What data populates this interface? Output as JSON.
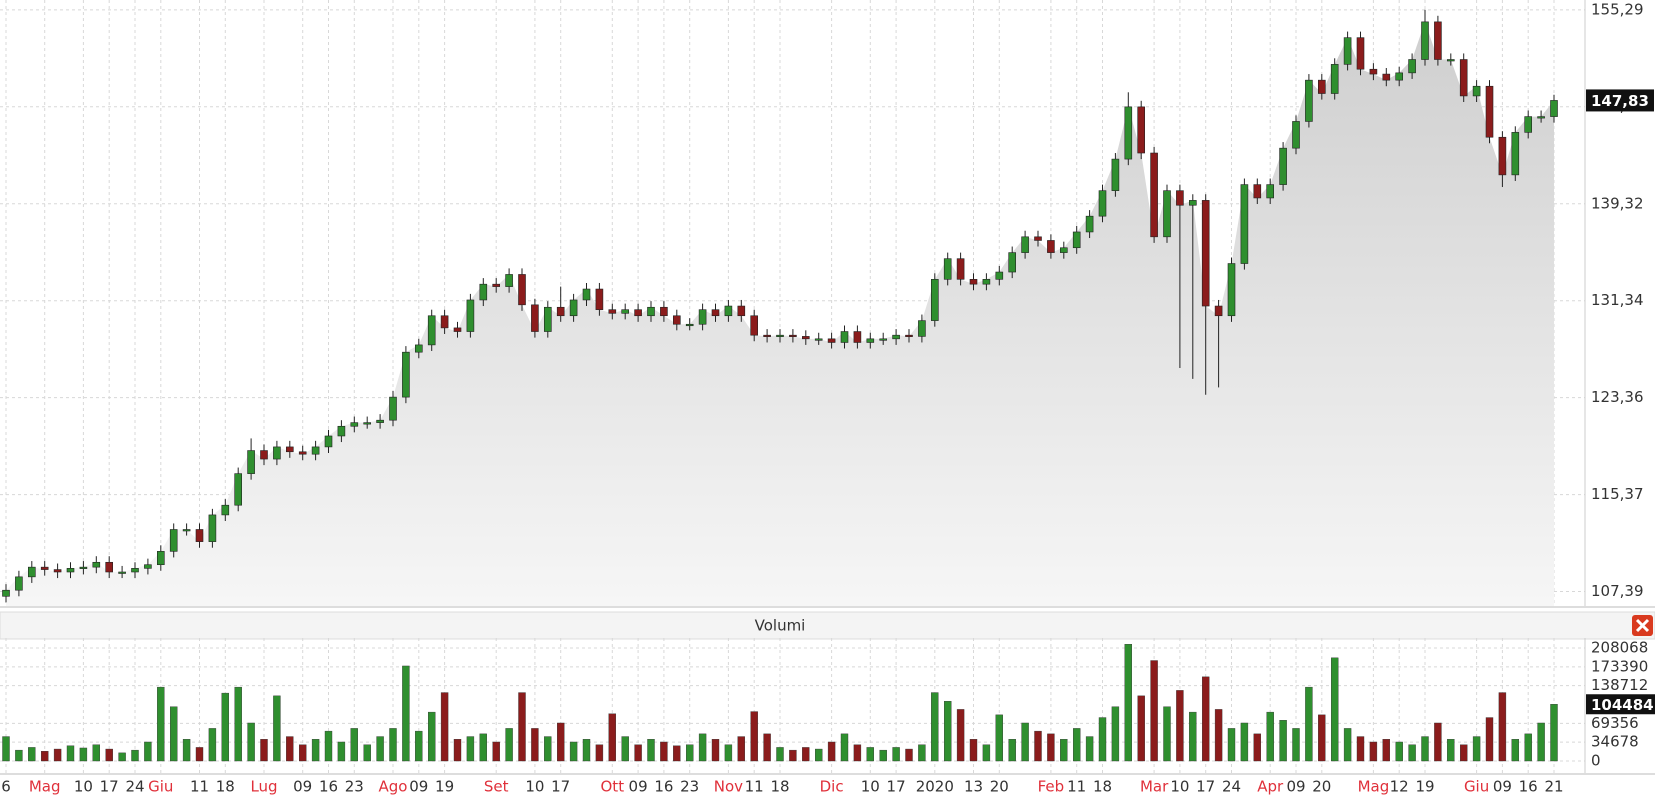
{
  "chart_data": [
    {
      "type": "candlestick",
      "categories": [
        "6",
        null,
        null,
        "Mag",
        null,
        null,
        "10",
        null,
        "17",
        null,
        "24",
        null,
        "Giu",
        null,
        null,
        "11",
        null,
        "18",
        null,
        null,
        "Lug",
        null,
        null,
        "09",
        null,
        "16",
        null,
        "23",
        null,
        null,
        "Ago",
        null,
        "09",
        null,
        "19",
        null,
        null,
        null,
        "Set",
        null,
        null,
        "10",
        null,
        "17",
        null,
        null,
        null,
        "Ott",
        null,
        "09",
        null,
        "16",
        null,
        "23",
        null,
        null,
        "Nov",
        null,
        "11",
        null,
        "18",
        null,
        null,
        null,
        "Dic",
        null,
        null,
        "10",
        null,
        "17",
        null,
        null,
        "2020",
        null,
        null,
        "13",
        null,
        "20",
        null,
        null,
        null,
        "Feb",
        null,
        "11",
        null,
        "18",
        null,
        null,
        null,
        "Mar",
        null,
        "10",
        null,
        "17",
        null,
        "24",
        null,
        null,
        "Apr",
        null,
        "09",
        null,
        "20",
        null,
        null,
        null,
        "Mag",
        null,
        "12",
        null,
        "19",
        null,
        null,
        null,
        "Giu",
        null,
        "09",
        null,
        "16",
        null,
        "21"
      ],
      "open": [
        107.0,
        107.5,
        108.6,
        109.4,
        109.2,
        109.0,
        109.3,
        109.4,
        109.8,
        109.0,
        109.0,
        109.3,
        109.6,
        110.7,
        112.5,
        112.5,
        111.5,
        113.7,
        114.5,
        117.1,
        119.0,
        118.3,
        119.3,
        118.9,
        118.7,
        119.3,
        120.2,
        121.0,
        121.3,
        121.3,
        121.5,
        123.4,
        127.1,
        127.7,
        130.1,
        129.1,
        128.8,
        131.4,
        132.7,
        132.5,
        133.5,
        131.0,
        128.8,
        130.8,
        130.1,
        131.4,
        132.3,
        130.6,
        130.3,
        130.6,
        130.1,
        130.8,
        130.1,
        129.4,
        129.4,
        130.6,
        130.1,
        130.9,
        130.1,
        128.5,
        128.4,
        128.5,
        128.4,
        128.2,
        128.2,
        127.9,
        128.8,
        127.9,
        128.2,
        128.2,
        128.5,
        128.4,
        129.7,
        133.1,
        134.8,
        133.1,
        132.7,
        133.1,
        133.7,
        135.3,
        136.6,
        136.3,
        135.3,
        135.7,
        137.0,
        138.3,
        140.4,
        143.0,
        147.3,
        143.5,
        136.6,
        140.4,
        139.2,
        139.6,
        130.9,
        130.1,
        134.4,
        140.9,
        139.8,
        140.9,
        143.9,
        146.1,
        149.5,
        148.4,
        150.8,
        153.0,
        150.4,
        150.0,
        149.5,
        150.1,
        151.2,
        154.3,
        151.2,
        151.2,
        148.2,
        149.0,
        144.8,
        141.7,
        145.2,
        146.5,
        146.5
      ],
      "high": [
        108.0,
        109.1,
        109.9,
        109.9,
        109.7,
        109.8,
        109.9,
        110.3,
        110.3,
        109.5,
        109.8,
        110.1,
        111.2,
        113.0,
        113.0,
        113.0,
        114.2,
        115.0,
        117.6,
        120.0,
        119.5,
        119.8,
        119.8,
        119.4,
        119.8,
        120.7,
        121.5,
        121.8,
        121.8,
        122.0,
        123.9,
        127.6,
        128.2,
        130.6,
        130.6,
        129.6,
        131.9,
        133.2,
        133.2,
        134.0,
        134.0,
        131.5,
        131.3,
        132.5,
        131.9,
        132.8,
        132.8,
        131.1,
        131.1,
        131.1,
        131.3,
        131.3,
        130.6,
        129.9,
        131.1,
        131.1,
        131.4,
        131.4,
        130.6,
        129.0,
        129.0,
        129.0,
        128.9,
        128.7,
        128.7,
        129.3,
        129.3,
        128.7,
        128.7,
        129.0,
        129.0,
        130.2,
        133.6,
        135.3,
        135.3,
        133.6,
        133.6,
        134.2,
        135.8,
        137.1,
        137.1,
        136.8,
        136.2,
        137.5,
        138.8,
        140.9,
        143.5,
        148.5,
        147.8,
        144.0,
        140.9,
        140.9,
        140.1,
        140.1,
        131.4,
        134.9,
        141.4,
        141.4,
        141.4,
        144.4,
        146.6,
        150.0,
        150.0,
        151.3,
        153.5,
        153.5,
        150.9,
        150.5,
        150.6,
        151.7,
        155.3,
        154.8,
        151.7,
        151.7,
        149.5,
        149.5,
        145.3,
        145.7,
        147.0,
        147.0,
        148.3
      ],
      "low": [
        106.5,
        107.0,
        108.1,
        108.7,
        108.5,
        108.5,
        108.8,
        108.9,
        108.5,
        108.5,
        108.5,
        108.8,
        109.1,
        110.2,
        112.0,
        111.0,
        111.0,
        113.2,
        114.0,
        116.6,
        117.8,
        117.8,
        118.4,
        118.2,
        118.2,
        118.8,
        119.7,
        120.5,
        120.8,
        120.8,
        121.0,
        122.9,
        126.6,
        127.2,
        128.6,
        128.3,
        128.3,
        130.9,
        132.0,
        132.0,
        130.5,
        128.3,
        128.3,
        129.6,
        129.6,
        130.9,
        130.1,
        129.8,
        129.8,
        129.6,
        129.6,
        129.6,
        128.9,
        128.9,
        128.9,
        129.6,
        129.6,
        129.6,
        128.0,
        127.9,
        127.9,
        127.9,
        127.7,
        127.7,
        127.4,
        127.4,
        127.4,
        127.4,
        127.7,
        127.7,
        127.9,
        127.9,
        129.2,
        132.6,
        132.6,
        132.2,
        132.2,
        132.6,
        133.2,
        134.8,
        135.8,
        134.8,
        134.8,
        135.2,
        136.5,
        137.8,
        139.9,
        142.5,
        143.0,
        136.1,
        136.1,
        125.8,
        124.9,
        123.6,
        124.2,
        129.6,
        133.9,
        139.3,
        139.3,
        140.4,
        143.4,
        145.6,
        147.9,
        147.9,
        150.3,
        149.9,
        149.5,
        149.0,
        149.0,
        149.6,
        150.7,
        150.7,
        150.7,
        147.7,
        147.7,
        144.3,
        140.7,
        141.2,
        144.7,
        146.0,
        146.0
      ],
      "close": [
        107.5,
        108.6,
        109.4,
        109.2,
        109.0,
        109.3,
        109.4,
        109.8,
        109.0,
        109.0,
        109.3,
        109.6,
        110.7,
        112.5,
        112.5,
        111.5,
        113.7,
        114.5,
        117.1,
        119.0,
        118.3,
        119.3,
        118.9,
        118.7,
        119.3,
        120.2,
        121.0,
        121.3,
        121.3,
        121.5,
        123.4,
        127.1,
        127.7,
        130.1,
        129.1,
        128.8,
        131.4,
        132.7,
        132.5,
        133.5,
        131.0,
        128.8,
        130.8,
        130.1,
        131.4,
        132.3,
        130.6,
        130.3,
        130.6,
        130.1,
        130.8,
        130.1,
        129.4,
        129.4,
        130.6,
        130.1,
        130.9,
        130.1,
        128.5,
        128.4,
        128.5,
        128.4,
        128.2,
        128.2,
        127.9,
        128.8,
        127.9,
        128.2,
        128.2,
        128.5,
        128.4,
        129.7,
        133.1,
        134.8,
        133.1,
        132.7,
        133.1,
        133.7,
        135.3,
        136.6,
        136.3,
        135.3,
        135.7,
        137.0,
        138.3,
        140.4,
        143.0,
        147.3,
        143.5,
        136.6,
        140.4,
        139.2,
        139.6,
        130.9,
        130.1,
        134.4,
        140.9,
        139.8,
        140.9,
        143.9,
        146.1,
        149.5,
        148.4,
        150.8,
        153.0,
        150.4,
        150.0,
        149.5,
        150.1,
        151.2,
        154.3,
        151.2,
        151.2,
        148.2,
        149.0,
        144.8,
        141.7,
        145.2,
        146.5,
        146.5,
        147.83
      ],
      "up_color": "#2f8f2f",
      "down_color": "#8b1c1c",
      "ylim": [
        106.2,
        156.1
      ],
      "yticks": [
        {
          "value": 107.39,
          "label": "107,39"
        },
        {
          "value": 115.37,
          "label": "115,37"
        },
        {
          "value": 123.36,
          "label": "123,36"
        },
        {
          "value": 131.34,
          "label": "131,34"
        },
        {
          "value": 139.32,
          "label": "139,32"
        },
        {
          "value": 147.31,
          "label": "147,31"
        },
        {
          "value": 155.29,
          "label": "155,29"
        }
      ],
      "last_price": {
        "value": 147.83,
        "label": "147,83"
      },
      "grid": true
    },
    {
      "type": "bar",
      "title": "Volumi",
      "values": [
        45000,
        20000,
        25000,
        18000,
        22000,
        28000,
        24000,
        30000,
        22000,
        15000,
        20000,
        35000,
        136000,
        100000,
        40000,
        25000,
        60000,
        125000,
        136000,
        70000,
        40000,
        120000,
        45000,
        30000,
        40000,
        55000,
        35000,
        60000,
        30000,
        45000,
        60000,
        175000,
        55000,
        90000,
        126000,
        40000,
        45000,
        50000,
        35000,
        60000,
        126000,
        60000,
        45000,
        70000,
        35000,
        40000,
        30000,
        87000,
        45000,
        30000,
        40000,
        35000,
        28000,
        30000,
        50000,
        40000,
        30000,
        45000,
        91000,
        50000,
        25000,
        20000,
        25000,
        22000,
        35000,
        50000,
        30000,
        25000,
        20000,
        25000,
        22000,
        30000,
        126000,
        110000,
        95000,
        40000,
        30000,
        85000,
        40000,
        70000,
        55000,
        50000,
        40000,
        60000,
        45000,
        80000,
        100000,
        215000,
        120000,
        185000,
        100000,
        130000,
        90000,
        155000,
        95000,
        60000,
        70000,
        50000,
        90000,
        75000,
        60000,
        136000,
        85000,
        190000,
        60000,
        45000,
        35000,
        40000,
        35000,
        30000,
        45000,
        70000,
        40000,
        30000,
        45000,
        80000,
        126000,
        40000,
        50000,
        70000,
        104484
      ],
      "ylim": [
        0,
        222800
      ],
      "yticks": [
        0,
        34678,
        69356,
        138712,
        173390,
        208068
      ],
      "grid": true
    }
  ]
}
